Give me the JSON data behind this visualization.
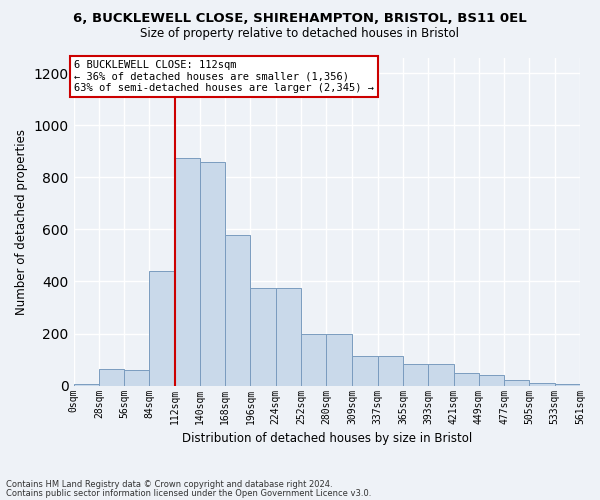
{
  "title1": "6, BUCKLEWELL CLOSE, SHIREHAMPTON, BRISTOL, BS11 0EL",
  "title2": "Size of property relative to detached houses in Bristol",
  "xlabel": "Distribution of detached houses by size in Bristol",
  "ylabel": "Number of detached properties",
  "bar_color": "#c9d9ea",
  "bar_edge_color": "#7a9cbf",
  "vline_color": "#cc0000",
  "vline_x": 112,
  "annotation_title": "6 BUCKLEWELL CLOSE: 112sqm",
  "annotation_line2": "← 36% of detached houses are smaller (1,356)",
  "annotation_line3": "63% of semi-detached houses are larger (2,345) →",
  "annotation_box_color": "#ffffff",
  "annotation_box_edge": "#cc0000",
  "footnote1": "Contains HM Land Registry data © Crown copyright and database right 2024.",
  "footnote2": "Contains public sector information licensed under the Open Government Licence v3.0.",
  "bins": [
    0,
    28,
    56,
    84,
    112,
    140,
    168,
    196,
    224,
    252,
    280,
    309,
    337,
    365,
    393,
    421,
    449,
    477,
    505,
    533,
    561
  ],
  "bin_labels": [
    "0sqm",
    "28sqm",
    "56sqm",
    "84sqm",
    "112sqm",
    "140sqm",
    "168sqm",
    "196sqm",
    "224sqm",
    "252sqm",
    "280sqm",
    "309sqm",
    "337sqm",
    "365sqm",
    "393sqm",
    "421sqm",
    "449sqm",
    "477sqm",
    "505sqm",
    "533sqm",
    "561sqm"
  ],
  "counts": [
    5,
    65,
    60,
    440,
    875,
    860,
    580,
    375,
    375,
    200,
    200,
    115,
    115,
    85,
    85,
    50,
    40,
    20,
    12,
    5
  ],
  "ylim": [
    0,
    1260
  ],
  "yticks": [
    0,
    200,
    400,
    600,
    800,
    1000,
    1200
  ],
  "background_color": "#eef2f7",
  "grid_color": "#ffffff"
}
